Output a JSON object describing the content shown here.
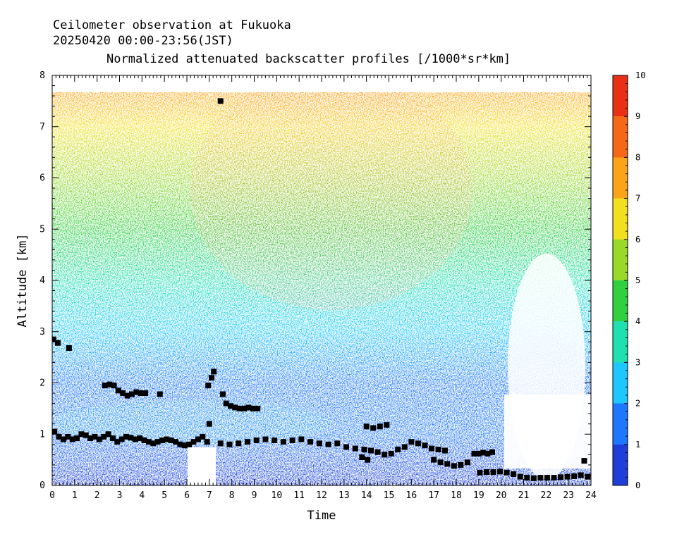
{
  "chart_data": {
    "type": "heatmap",
    "title_lines": [
      "Ceilometer observation at Fukuoka",
      "20250420  00:00-23:56(JST)",
      "Normalized attenuated backscatter profiles [/1000*sr*km]"
    ],
    "xlabel": "Time",
    "ylabel": "Altitude [km]",
    "xlim": [
      0,
      24
    ],
    "ylim": [
      0,
      8
    ],
    "x_ticks": [
      "0",
      "1",
      "2",
      "3",
      "4",
      "5",
      "6",
      "7",
      "8",
      "9",
      "10",
      "11",
      "12",
      "13",
      "14",
      "15",
      "16",
      "17",
      "18",
      "19",
      "20",
      "21",
      "22",
      "23",
      "24"
    ],
    "y_ticks": [
      "0",
      "1",
      "2",
      "3",
      "4",
      "5",
      "6",
      "7",
      "8"
    ],
    "data_top_altitude_km": 7.67,
    "colorbar": {
      "range": [
        0,
        10
      ],
      "ticks": [
        "0",
        "1",
        "2",
        "3",
        "4",
        "5",
        "6",
        "7",
        "8",
        "9",
        "10"
      ],
      "colors": [
        "#1f3fd8",
        "#1e78ff",
        "#1ec8ff",
        "#20e0b0",
        "#30d040",
        "#9ad82a",
        "#f2e020",
        "#fca418",
        "#f56818",
        "#ea2f17"
      ]
    },
    "background_profile": [
      {
        "alt": 0.0,
        "value": 0.8
      },
      {
        "alt": 1.0,
        "value": 1.2
      },
      {
        "alt": 2.0,
        "value": 1.8
      },
      {
        "alt": 3.0,
        "value": 2.6
      },
      {
        "alt": 4.0,
        "value": 3.4
      },
      {
        "alt": 5.0,
        "value": 4.2
      },
      {
        "alt": 6.0,
        "value": 5.4
      },
      {
        "alt": 7.0,
        "value": 6.4
      },
      {
        "alt": 7.67,
        "value": 7.0
      }
    ],
    "series": [
      {
        "points": [
          [
            0.05,
            2.85
          ],
          [
            0.25,
            2.78
          ],
          [
            0.75,
            2.68
          ],
          [
            0.1,
            1.05
          ],
          [
            0.3,
            0.95
          ],
          [
            0.5,
            0.9
          ],
          [
            0.7,
            0.95
          ],
          [
            0.9,
            0.9
          ],
          [
            1.1,
            0.92
          ],
          [
            1.3,
            1.0
          ],
          [
            1.5,
            0.98
          ],
          [
            1.7,
            0.92
          ],
          [
            1.9,
            0.95
          ],
          [
            2.1,
            0.9
          ],
          [
            2.3,
            0.95
          ],
          [
            2.5,
            1.0
          ],
          [
            2.7,
            0.92
          ],
          [
            2.9,
            0.85
          ],
          [
            3.1,
            0.9
          ],
          [
            3.3,
            0.95
          ],
          [
            3.5,
            0.93
          ],
          [
            3.7,
            0.9
          ],
          [
            3.9,
            0.92
          ],
          [
            4.1,
            0.88
          ],
          [
            4.3,
            0.85
          ],
          [
            4.5,
            0.82
          ],
          [
            4.7,
            0.85
          ],
          [
            4.9,
            0.88
          ],
          [
            5.1,
            0.9
          ],
          [
            5.3,
            0.88
          ],
          [
            5.5,
            0.85
          ],
          [
            5.7,
            0.8
          ],
          [
            5.9,
            0.78
          ],
          [
            6.1,
            0.8
          ],
          [
            6.3,
            0.85
          ],
          [
            6.5,
            0.9
          ],
          [
            6.7,
            0.95
          ],
          [
            6.9,
            0.85
          ],
          [
            2.35,
            1.95
          ],
          [
            2.55,
            1.97
          ],
          [
            2.75,
            1.95
          ],
          [
            2.95,
            1.85
          ],
          [
            3.15,
            1.8
          ],
          [
            3.35,
            1.75
          ],
          [
            3.55,
            1.78
          ],
          [
            3.75,
            1.82
          ],
          [
            3.95,
            1.8
          ],
          [
            4.15,
            1.8
          ],
          [
            4.8,
            1.78
          ],
          [
            6.95,
            1.95
          ],
          [
            7.1,
            2.1
          ],
          [
            7.2,
            2.22
          ],
          [
            7.0,
            1.2
          ],
          [
            7.5,
            7.5
          ],
          [
            7.6,
            1.78
          ],
          [
            7.75,
            1.6
          ],
          [
            7.95,
            1.55
          ],
          [
            8.15,
            1.52
          ],
          [
            8.35,
            1.5
          ],
          [
            8.55,
            1.5
          ],
          [
            8.75,
            1.52
          ],
          [
            8.95,
            1.5
          ],
          [
            9.15,
            1.5
          ],
          [
            7.5,
            0.82
          ],
          [
            7.9,
            0.8
          ],
          [
            8.3,
            0.82
          ],
          [
            8.7,
            0.85
          ],
          [
            9.1,
            0.88
          ],
          [
            9.5,
            0.9
          ],
          [
            9.9,
            0.88
          ],
          [
            10.3,
            0.85
          ],
          [
            10.7,
            0.88
          ],
          [
            11.1,
            0.9
          ],
          [
            11.5,
            0.85
          ],
          [
            11.9,
            0.82
          ],
          [
            12.3,
            0.8
          ],
          [
            12.7,
            0.82
          ],
          [
            13.1,
            0.75
          ],
          [
            13.5,
            0.72
          ],
          [
            13.9,
            0.7
          ],
          [
            14.2,
            0.68
          ],
          [
            14.5,
            0.65
          ],
          [
            14.8,
            0.6
          ],
          [
            15.1,
            0.62
          ],
          [
            15.4,
            0.7
          ],
          [
            15.7,
            0.75
          ],
          [
            16.0,
            0.85
          ],
          [
            16.3,
            0.82
          ],
          [
            16.6,
            0.78
          ],
          [
            16.9,
            0.72
          ],
          [
            14.0,
            1.15
          ],
          [
            14.3,
            1.12
          ],
          [
            14.6,
            1.15
          ],
          [
            14.9,
            1.18
          ],
          [
            13.8,
            0.55
          ],
          [
            14.05,
            0.5
          ],
          [
            17.0,
            0.5
          ],
          [
            17.3,
            0.45
          ],
          [
            17.6,
            0.42
          ],
          [
            17.9,
            0.38
          ],
          [
            18.2,
            0.4
          ],
          [
            18.5,
            0.45
          ],
          [
            17.2,
            0.7
          ],
          [
            17.5,
            0.68
          ],
          [
            18.8,
            0.62
          ],
          [
            19.0,
            0.62
          ],
          [
            19.2,
            0.64
          ],
          [
            19.4,
            0.62
          ],
          [
            19.6,
            0.65
          ],
          [
            19.05,
            0.25
          ],
          [
            19.35,
            0.26
          ],
          [
            19.65,
            0.26
          ],
          [
            19.95,
            0.27
          ],
          [
            20.25,
            0.25
          ],
          [
            20.55,
            0.22
          ],
          [
            20.85,
            0.17
          ],
          [
            21.15,
            0.15
          ],
          [
            21.45,
            0.14
          ],
          [
            21.75,
            0.15
          ],
          [
            22.05,
            0.15
          ],
          [
            22.35,
            0.15
          ],
          [
            22.65,
            0.16
          ],
          [
            22.95,
            0.17
          ],
          [
            23.25,
            0.18
          ],
          [
            23.55,
            0.2
          ],
          [
            23.85,
            0.17
          ],
          [
            23.7,
            0.48
          ]
        ]
      }
    ]
  }
}
